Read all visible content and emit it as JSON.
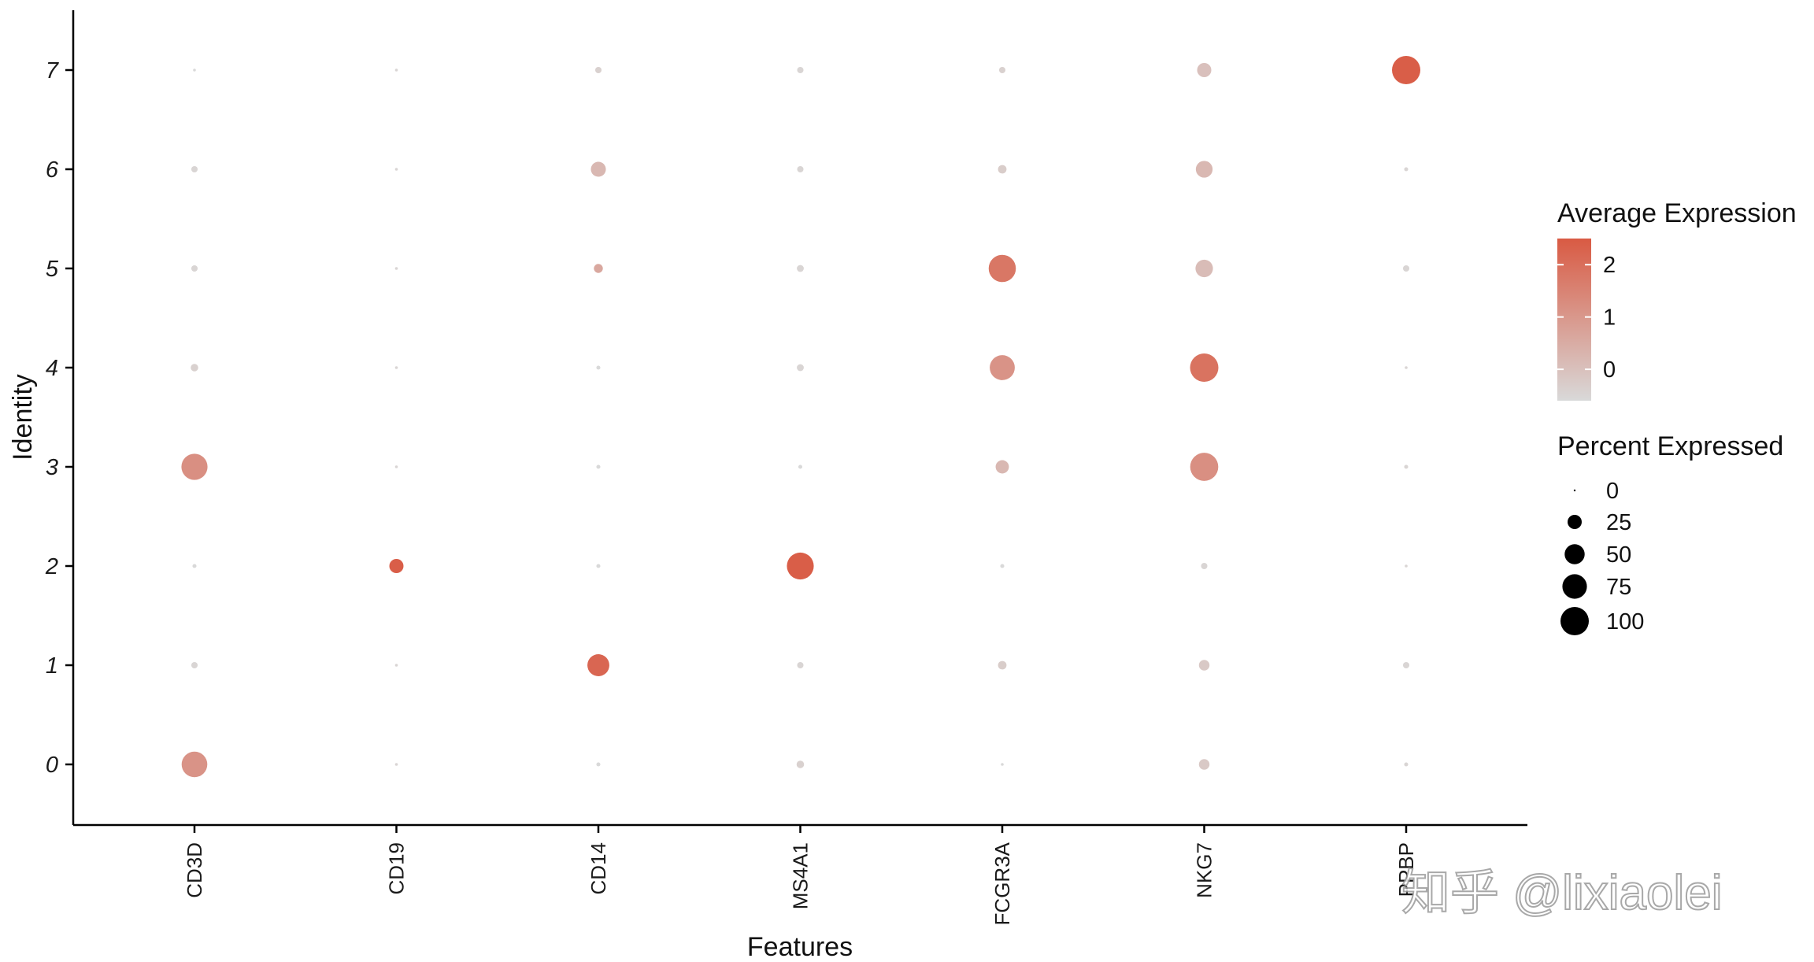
{
  "chart_data": {
    "type": "scatter",
    "xlabel": "Features",
    "ylabel": "Identity",
    "features": [
      "CD3D",
      "CD19",
      "CD14",
      "MS4A1",
      "FCGR3A",
      "NKG7",
      "PPBP"
    ],
    "identities": [
      "0",
      "1",
      "2",
      "3",
      "4",
      "5",
      "6",
      "7"
    ],
    "points": [
      {
        "feature": "CD3D",
        "identity": "0",
        "pct": 82,
        "avg": 1.1
      },
      {
        "feature": "CD3D",
        "identity": "1",
        "pct": 5,
        "avg": -0.5
      },
      {
        "feature": "CD3D",
        "identity": "2",
        "pct": 2,
        "avg": -0.6
      },
      {
        "feature": "CD3D",
        "identity": "3",
        "pct": 85,
        "avg": 1.2
      },
      {
        "feature": "CD3D",
        "identity": "4",
        "pct": 7,
        "avg": -0.4
      },
      {
        "feature": "CD3D",
        "identity": "5",
        "pct": 5,
        "avg": -0.5
      },
      {
        "feature": "CD3D",
        "identity": "6",
        "pct": 5,
        "avg": -0.5
      },
      {
        "feature": "CD3D",
        "identity": "7",
        "pct": 1,
        "avg": -0.6
      },
      {
        "feature": "CD19",
        "identity": "0",
        "pct": 1,
        "avg": -0.5
      },
      {
        "feature": "CD19",
        "identity": "1",
        "pct": 1,
        "avg": -0.5
      },
      {
        "feature": "CD19",
        "identity": "2",
        "pct": 25,
        "avg": 2.4
      },
      {
        "feature": "CD19",
        "identity": "3",
        "pct": 1,
        "avg": -0.5
      },
      {
        "feature": "CD19",
        "identity": "4",
        "pct": 1,
        "avg": -0.5
      },
      {
        "feature": "CD19",
        "identity": "5",
        "pct": 1,
        "avg": -0.5
      },
      {
        "feature": "CD19",
        "identity": "6",
        "pct": 1,
        "avg": -0.5
      },
      {
        "feature": "CD19",
        "identity": "7",
        "pct": 1,
        "avg": -0.5
      },
      {
        "feature": "CD14",
        "identity": "0",
        "pct": 2,
        "avg": -0.6
      },
      {
        "feature": "CD14",
        "identity": "1",
        "pct": 60,
        "avg": 2.2
      },
      {
        "feature": "CD14",
        "identity": "2",
        "pct": 2,
        "avg": -0.6
      },
      {
        "feature": "CD14",
        "identity": "3",
        "pct": 2,
        "avg": -0.6
      },
      {
        "feature": "CD14",
        "identity": "4",
        "pct": 2,
        "avg": -0.6
      },
      {
        "feature": "CD14",
        "identity": "5",
        "pct": 10,
        "avg": 0.6
      },
      {
        "feature": "CD14",
        "identity": "6",
        "pct": 28,
        "avg": 0.2
      },
      {
        "feature": "CD14",
        "identity": "7",
        "pct": 5,
        "avg": -0.4
      },
      {
        "feature": "MS4A1",
        "identity": "0",
        "pct": 7,
        "avg": -0.4
      },
      {
        "feature": "MS4A1",
        "identity": "1",
        "pct": 5,
        "avg": -0.5
      },
      {
        "feature": "MS4A1",
        "identity": "2",
        "pct": 90,
        "avg": 2.4
      },
      {
        "feature": "MS4A1",
        "identity": "3",
        "pct": 2,
        "avg": -0.6
      },
      {
        "feature": "MS4A1",
        "identity": "4",
        "pct": 6,
        "avg": -0.5
      },
      {
        "feature": "MS4A1",
        "identity": "5",
        "pct": 6,
        "avg": -0.5
      },
      {
        "feature": "MS4A1",
        "identity": "6",
        "pct": 5,
        "avg": -0.5
      },
      {
        "feature": "MS4A1",
        "identity": "7",
        "pct": 5,
        "avg": -0.5
      },
      {
        "feature": "FCGR3A",
        "identity": "0",
        "pct": 1,
        "avg": -0.6
      },
      {
        "feature": "FCGR3A",
        "identity": "1",
        "pct": 9,
        "avg": -0.3
      },
      {
        "feature": "FCGR3A",
        "identity": "2",
        "pct": 2,
        "avg": -0.6
      },
      {
        "feature": "FCGR3A",
        "identity": "3",
        "pct": 22,
        "avg": 0.2
      },
      {
        "feature": "FCGR3A",
        "identity": "4",
        "pct": 78,
        "avg": 1.1
      },
      {
        "feature": "FCGR3A",
        "identity": "5",
        "pct": 92,
        "avg": 1.8
      },
      {
        "feature": "FCGR3A",
        "identity": "6",
        "pct": 9,
        "avg": -0.3
      },
      {
        "feature": "FCGR3A",
        "identity": "7",
        "pct": 5,
        "avg": -0.4
      },
      {
        "feature": "NKG7",
        "identity": "0",
        "pct": 14,
        "avg": -0.2
      },
      {
        "feature": "NKG7",
        "identity": "1",
        "pct": 14,
        "avg": -0.2
      },
      {
        "feature": "NKG7",
        "identity": "2",
        "pct": 5,
        "avg": -0.5
      },
      {
        "feature": "NKG7",
        "identity": "3",
        "pct": 98,
        "avg": 1.2
      },
      {
        "feature": "NKG7",
        "identity": "4",
        "pct": 100,
        "avg": 1.9
      },
      {
        "feature": "NKG7",
        "identity": "5",
        "pct": 38,
        "avg": 0.1
      },
      {
        "feature": "NKG7",
        "identity": "6",
        "pct": 35,
        "avg": 0.2
      },
      {
        "feature": "NKG7",
        "identity": "7",
        "pct": 25,
        "avg": 0.0
      },
      {
        "feature": "PPBP",
        "identity": "0",
        "pct": 2,
        "avg": -0.5
      },
      {
        "feature": "PPBP",
        "identity": "1",
        "pct": 5,
        "avg": -0.5
      },
      {
        "feature": "PPBP",
        "identity": "2",
        "pct": 1,
        "avg": -0.5
      },
      {
        "feature": "PPBP",
        "identity": "3",
        "pct": 2,
        "avg": -0.5
      },
      {
        "feature": "PPBP",
        "identity": "4",
        "pct": 1,
        "avg": -0.5
      },
      {
        "feature": "PPBP",
        "identity": "5",
        "pct": 5,
        "avg": -0.5
      },
      {
        "feature": "PPBP",
        "identity": "6",
        "pct": 2,
        "avg": -0.5
      },
      {
        "feature": "PPBP",
        "identity": "7",
        "pct": 100,
        "avg": 2.4
      }
    ],
    "color_scale": {
      "title": "Average Expression",
      "low_color": "#d9d9d9",
      "high_color": "#d95a43",
      "min": -0.6,
      "max": 2.5,
      "ticks": [
        0,
        1,
        2
      ]
    },
    "size_scale": {
      "title": "Percent Expressed",
      "breaks": [
        0,
        25,
        50,
        75,
        100
      ]
    },
    "legend_position": "right",
    "grid": false
  },
  "watermark": "知乎 @lixiaolei"
}
